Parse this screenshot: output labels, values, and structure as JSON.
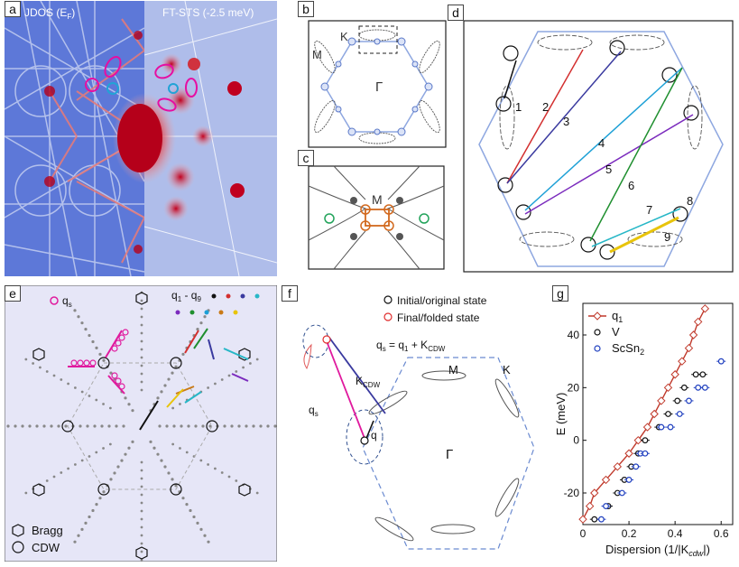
{
  "panels": {
    "a": {
      "label": "a",
      "left_title": "JDOS (E",
      "left_sub": "F",
      "left_close": ")",
      "right_title": "FT-STS (-2.5 meV)"
    },
    "b": {
      "label": "b",
      "K": "K",
      "M": "M",
      "Gamma": "Γ"
    },
    "c": {
      "label": "c",
      "M": "M"
    },
    "d": {
      "label": "d",
      "vectors": [
        "1",
        "2",
        "3",
        "4",
        "5",
        "6",
        "7",
        "8",
        "9"
      ]
    },
    "e": {
      "label": "e",
      "qs": "q",
      "qs_sub": "s",
      "q19": "q",
      "q19_sub1": "1",
      "q19_dash": " - q",
      "q19_sub9": "9",
      "bragg": "Bragg",
      "cdw": "CDW"
    },
    "f": {
      "label": "f",
      "legend_initial": "Initial/original state",
      "legend_final": "Final/folded state",
      "eq_q": "q",
      "eq_q_sub": "s",
      "eq_mid": " = q",
      "eq_mid_sub": "1",
      "eq_plus": " + K",
      "eq_plus_sub": "CDW",
      "kcdw": "K",
      "kcdw_sub": "CDW",
      "qs_label": "q",
      "qs_label_sub": "s",
      "q_label": "q",
      "M": "M",
      "K": "K",
      "Gamma": "Γ"
    }
  },
  "colors": {
    "q1": "#c0392b",
    "V": "#111111",
    "ScSn2": "#1f3fbf",
    "background_e": "#e6e6f7",
    "stm_blue": "#3a52c8"
  },
  "chart_data": {
    "type": "scatter",
    "title": "",
    "xlabel": "Dispersion (1/|K",
    "xlabel_sub": "cdw",
    "xlabel_close": "|)",
    "ylabel": "E (meV)",
    "xlim": [
      0,
      0.65
    ],
    "ylim": [
      -32,
      52
    ],
    "xticks": [
      "0",
      "0.2",
      "0.4",
      "0.6"
    ],
    "yticks": [
      "-20",
      "0",
      "20",
      "40"
    ],
    "series": [
      {
        "name": "q",
        "name_sub": "1",
        "marker": "diamond",
        "color": "#c0392b",
        "points": [
          [
            0.0,
            -30
          ],
          [
            0.03,
            -25
          ],
          [
            0.05,
            -20
          ],
          [
            0.1,
            -15
          ],
          [
            0.15,
            -10
          ],
          [
            0.2,
            -5
          ],
          [
            0.24,
            0
          ],
          [
            0.28,
            5
          ],
          [
            0.31,
            10
          ],
          [
            0.34,
            15
          ],
          [
            0.37,
            20
          ],
          [
            0.4,
            25
          ],
          [
            0.43,
            30
          ],
          [
            0.46,
            35
          ],
          [
            0.48,
            40
          ],
          [
            0.5,
            45
          ],
          [
            0.53,
            50
          ]
        ]
      },
      {
        "name": "V",
        "marker": "circle",
        "color": "#111111",
        "points": [
          [
            0.05,
            -30
          ],
          [
            0.11,
            -25
          ],
          [
            0.15,
            -20
          ],
          [
            0.18,
            -15
          ],
          [
            0.21,
            -10
          ],
          [
            0.24,
            -5
          ],
          [
            0.27,
            0
          ],
          [
            0.33,
            5
          ],
          [
            0.37,
            10
          ],
          [
            0.41,
            15
          ],
          [
            0.44,
            20
          ],
          [
            0.49,
            25
          ],
          [
            0.52,
            25
          ]
        ]
      },
      {
        "name": "ScSn",
        "name_sub": "2",
        "marker": "circle",
        "color": "#1f3fbf",
        "points": [
          [
            0.08,
            -30
          ],
          [
            0.1,
            -25
          ],
          [
            0.17,
            -20
          ],
          [
            0.2,
            -15
          ],
          [
            0.23,
            -10
          ],
          [
            0.25,
            -5
          ],
          [
            0.27,
            -5
          ],
          [
            0.34,
            5
          ],
          [
            0.38,
            5
          ],
          [
            0.42,
            10
          ],
          [
            0.46,
            15
          ],
          [
            0.5,
            20
          ],
          [
            0.53,
            20
          ],
          [
            0.6,
            30
          ]
        ]
      }
    ]
  }
}
